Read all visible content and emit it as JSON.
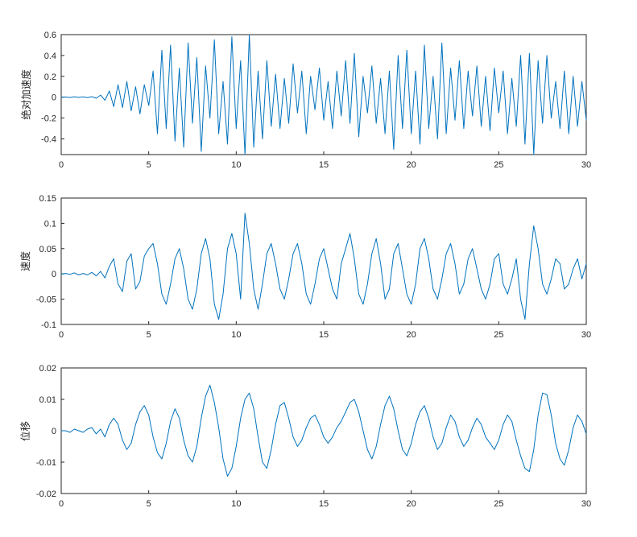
{
  "figure": {
    "background": "#ffffff",
    "axes_color": "#262626"
  },
  "chart_data": [
    {
      "type": "line",
      "ylabel": "绝对加速度",
      "xlabel": "",
      "xlim": [
        0,
        30
      ],
      "ylim": [
        -0.55,
        0.6
      ],
      "xticks": [
        0,
        5,
        10,
        15,
        20,
        25,
        30
      ],
      "xtick_labels": [
        "0",
        "5",
        "10",
        "15",
        "20",
        "25",
        "30"
      ],
      "yticks": [
        -0.4,
        -0.2,
        0,
        0.2,
        0.4,
        0.6
      ],
      "ytick_labels": [
        "-0.4",
        "-0.2",
        "0",
        "0.2",
        "0.4",
        "0.6"
      ],
      "line_color": "#0072BD",
      "grid": false,
      "x_start": 0,
      "x_step": 0.25,
      "values": [
        0,
        0.002,
        -0.003,
        0.004,
        -0.002,
        0.003,
        -0.004,
        0.005,
        -0.01,
        0.02,
        -0.03,
        0.06,
        -0.09,
        0.12,
        -0.1,
        0.15,
        -0.13,
        0.1,
        -0.16,
        0.12,
        -0.08,
        0.25,
        -0.35,
        0.45,
        -0.3,
        0.5,
        -0.42,
        0.28,
        -0.48,
        0.52,
        -0.25,
        0.38,
        -0.52,
        0.3,
        -0.2,
        0.55,
        -0.35,
        0.15,
        -0.45,
        0.58,
        -0.3,
        0.35,
        -0.55,
        0.6,
        -0.48,
        0.25,
        -0.4,
        0.35,
        -0.28,
        0.22,
        -0.3,
        0.18,
        -0.25,
        0.32,
        -0.15,
        0.25,
        -0.35,
        0.2,
        -0.12,
        0.28,
        -0.22,
        0.15,
        -0.3,
        0.25,
        -0.18,
        0.35,
        -0.25,
        0.42,
        -0.38,
        0.2,
        -0.15,
        0.3,
        -0.25,
        0.18,
        -0.35,
        0.25,
        -0.5,
        0.4,
        -0.3,
        0.45,
        -0.35,
        0.25,
        -0.45,
        0.5,
        -0.3,
        0.2,
        -0.4,
        0.52,
        -0.35,
        0.28,
        -0.22,
        0.35,
        -0.3,
        0.25,
        -0.18,
        0.3,
        -0.28,
        0.2,
        -0.32,
        0.28,
        -0.15,
        0.25,
        -0.35,
        0.18,
        -0.28,
        0.4,
        -0.45,
        0.42,
        -0.55,
        0.35,
        -0.25,
        0.4,
        -0.2,
        0.15,
        -0.3,
        0.25,
        -0.35,
        0.2,
        -0.28,
        0.15,
        -0.22
      ]
    },
    {
      "type": "line",
      "ylabel": "速度",
      "xlabel": "",
      "xlim": [
        0,
        30
      ],
      "ylim": [
        -0.1,
        0.15
      ],
      "xticks": [
        0,
        5,
        10,
        15,
        20,
        25,
        30
      ],
      "xtick_labels": [
        "0",
        "5",
        "10",
        "15",
        "20",
        "25",
        "30"
      ],
      "yticks": [
        -0.1,
        -0.05,
        0,
        0.05,
        0.1,
        0.15
      ],
      "ytick_labels": [
        "-0.1",
        "-0.05",
        "0",
        "0.05",
        "0.1",
        "0.15"
      ],
      "line_color": "#0072BD",
      "grid": false,
      "x_start": 0,
      "x_step": 0.25,
      "values": [
        0,
        0.001,
        -0.001,
        0.002,
        -0.002,
        0.001,
        -0.002,
        0.003,
        -0.004,
        0.005,
        -0.008,
        0.015,
        0.03,
        -0.02,
        -0.035,
        0.025,
        0.04,
        -0.03,
        -0.015,
        0.035,
        0.05,
        0.06,
        0.02,
        -0.04,
        -0.06,
        -0.02,
        0.03,
        0.05,
        0.01,
        -0.05,
        -0.07,
        -0.03,
        0.04,
        0.07,
        0.03,
        -0.06,
        -0.09,
        -0.04,
        0.05,
        0.08,
        0.04,
        -0.05,
        0.12,
        0.06,
        -0.03,
        -0.07,
        -0.02,
        0.04,
        0.06,
        0.02,
        -0.03,
        -0.05,
        -0.01,
        0.04,
        0.06,
        0.02,
        -0.04,
        -0.06,
        -0.02,
        0.03,
        0.05,
        0.01,
        -0.03,
        -0.05,
        0.02,
        0.05,
        0.08,
        0.03,
        -0.04,
        -0.06,
        -0.02,
        0.04,
        0.07,
        0.02,
        -0.05,
        -0.03,
        0.04,
        0.06,
        0.01,
        -0.04,
        -0.06,
        -0.02,
        0.05,
        0.07,
        0.03,
        -0.03,
        -0.05,
        -0.01,
        0.04,
        0.06,
        0.02,
        -0.04,
        -0.02,
        0.03,
        0.05,
        0.01,
        -0.03,
        -0.05,
        -0.02,
        0.03,
        0.04,
        -0.02,
        -0.04,
        -0.01,
        0.03,
        -0.05,
        -0.09,
        0.02,
        0.095,
        0.05,
        -0.02,
        -0.04,
        -0.01,
        0.03,
        0.02,
        -0.03,
        -0.02,
        0.01,
        0.03,
        -0.01,
        0.02
      ]
    },
    {
      "type": "line",
      "ylabel": "位移",
      "xlabel": "",
      "xlim": [
        0,
        30
      ],
      "ylim": [
        -0.02,
        0.02
      ],
      "xticks": [
        0,
        5,
        10,
        15,
        20,
        25,
        30
      ],
      "xtick_labels": [
        "0",
        "5",
        "10",
        "15",
        "20",
        "25",
        "30"
      ],
      "yticks": [
        -0.02,
        -0.01,
        0,
        0.01,
        0.02
      ],
      "ytick_labels": [
        "-0.02",
        "-0.01",
        "0",
        "0.01",
        "0.02"
      ],
      "line_color": "#0072BD",
      "grid": false,
      "x_start": 0,
      "x_step": 0.25,
      "values": [
        0,
        0,
        -0.0005,
        0.0005,
        0,
        -0.0005,
        0.0005,
        0.001,
        -0.001,
        0.0005,
        -0.002,
        0.002,
        0.004,
        0.002,
        -0.003,
        -0.006,
        -0.004,
        0.002,
        0.006,
        0.008,
        0.005,
        -0.002,
        -0.007,
        -0.009,
        -0.004,
        0.003,
        0.007,
        0.004,
        -0.003,
        -0.008,
        -0.01,
        -0.005,
        0.004,
        0.011,
        0.0145,
        0.009,
        0.001,
        -0.009,
        -0.0145,
        -0.012,
        -0.005,
        0.004,
        0.01,
        0.012,
        0.007,
        -0.002,
        -0.01,
        -0.012,
        -0.006,
        0.002,
        0.008,
        0.009,
        0.004,
        -0.002,
        -0.005,
        -0.003,
        0.001,
        0.004,
        0.005,
        0.002,
        -0.002,
        -0.004,
        -0.002,
        0.001,
        0.003,
        0.006,
        0.009,
        0.01,
        0.006,
        0,
        -0.006,
        -0.009,
        -0.005,
        0.002,
        0.008,
        0.011,
        0.007,
        0,
        -0.006,
        -0.008,
        -0.004,
        0.002,
        0.006,
        0.008,
        0.004,
        -0.002,
        -0.006,
        -0.004,
        0.001,
        0.005,
        0.003,
        -0.002,
        -0.005,
        -0.003,
        0.001,
        0.004,
        0.002,
        -0.002,
        -0.004,
        -0.006,
        -0.003,
        0.002,
        0.005,
        0.003,
        -0.003,
        -0.008,
        -0.012,
        -0.013,
        -0.006,
        0.005,
        0.012,
        0.0115,
        0.005,
        -0.004,
        -0.009,
        -0.011,
        -0.006,
        0.001,
        0.005,
        0.003,
        -0.001
      ]
    }
  ]
}
